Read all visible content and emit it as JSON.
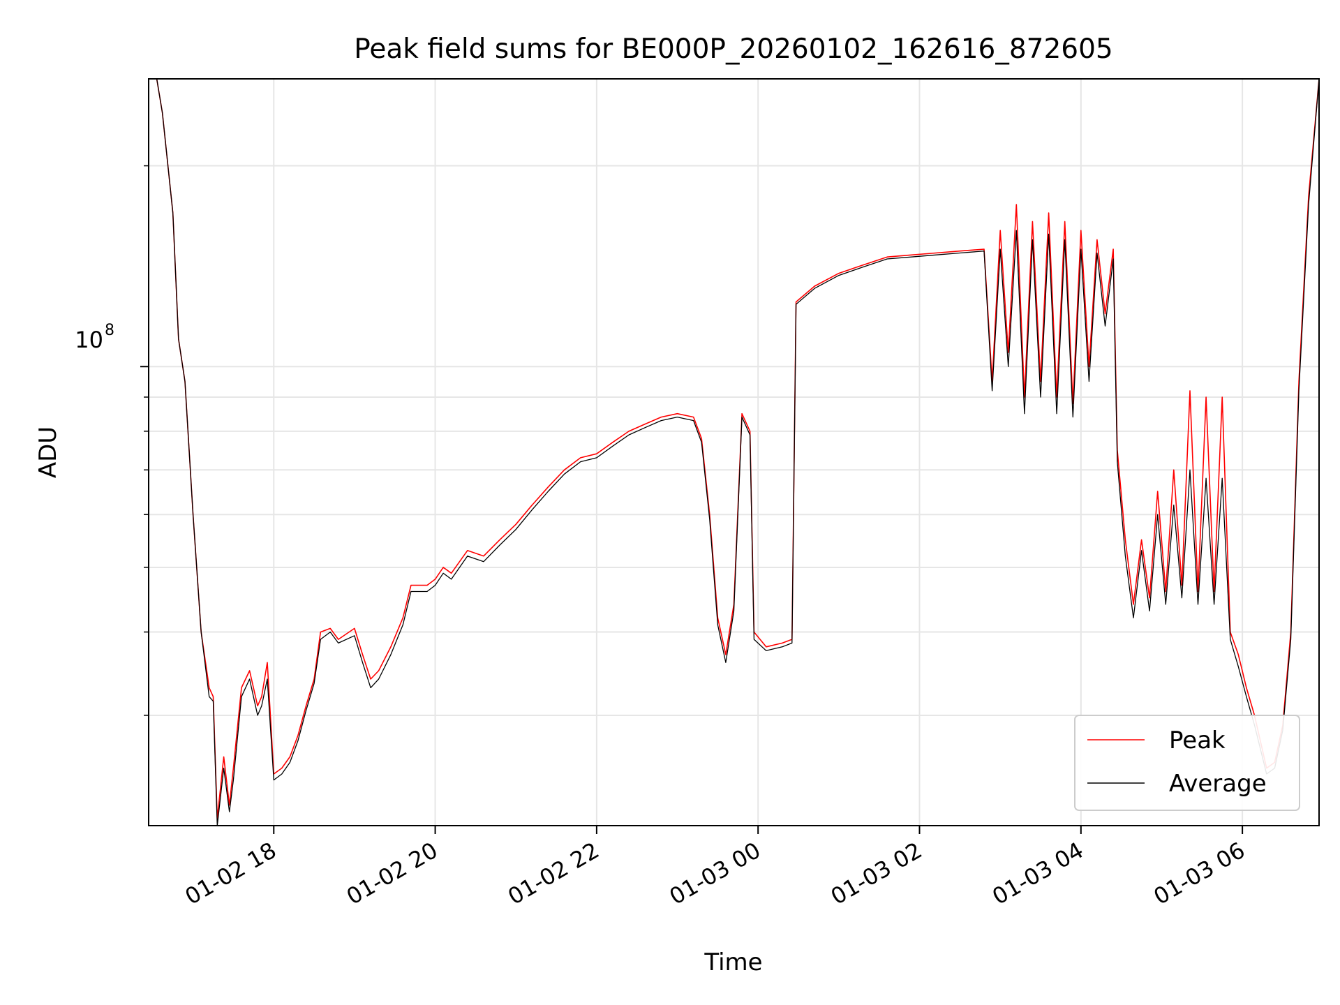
{
  "chart_data": {
    "type": "line",
    "title": "Peak field sums for BE000P_20260102_162616_872605",
    "xlabel": "Time",
    "ylabel": "ADU",
    "yscale": "log",
    "grid": true,
    "legend_location": "lower-right",
    "xlim_hours": [
      16.45,
      30.95
    ],
    "ylim": [
      20500000,
      270000000
    ],
    "x_tick_labels": [
      "01-02 18",
      "01-02 20",
      "01-02 22",
      "01-03 00",
      "01-03 02",
      "01-03 04",
      "01-03 06"
    ],
    "x_ticks_hours": [
      18,
      20,
      22,
      24,
      26,
      28,
      30
    ],
    "y_tick_label": {
      "base": "10",
      "exponent": "8",
      "value": 100000000
    },
    "series": [
      {
        "name": "Peak",
        "color": "#ff0000",
        "points": [
          [
            16.55,
            270000000
          ],
          [
            16.62,
            240000000
          ],
          [
            16.75,
            170000000
          ],
          [
            16.82,
            110000000
          ],
          [
            16.9,
            95000000
          ],
          [
            17.0,
            60000000
          ],
          [
            17.1,
            40000000
          ],
          [
            17.2,
            33000000
          ],
          [
            17.25,
            32000000
          ],
          [
            17.3,
            21000000
          ],
          [
            17.38,
            26000000
          ],
          [
            17.45,
            22000000
          ],
          [
            17.5,
            25000000
          ],
          [
            17.6,
            33000000
          ],
          [
            17.7,
            35000000
          ],
          [
            17.8,
            31000000
          ],
          [
            17.85,
            32000000
          ],
          [
            17.92,
            36000000
          ],
          [
            18.0,
            24500000
          ],
          [
            18.1,
            25000000
          ],
          [
            18.2,
            26000000
          ],
          [
            18.3,
            28000000
          ],
          [
            18.4,
            31000000
          ],
          [
            18.5,
            34000000
          ],
          [
            18.58,
            40000000
          ],
          [
            18.7,
            40500000
          ],
          [
            18.8,
            39000000
          ],
          [
            19.0,
            40500000
          ],
          [
            19.1,
            37000000
          ],
          [
            19.2,
            34000000
          ],
          [
            19.3,
            35000000
          ],
          [
            19.45,
            38000000
          ],
          [
            19.6,
            42000000
          ],
          [
            19.7,
            47000000
          ],
          [
            19.9,
            47000000
          ],
          [
            20.0,
            48000000
          ],
          [
            20.1,
            50000000
          ],
          [
            20.2,
            49000000
          ],
          [
            20.4,
            53000000
          ],
          [
            20.6,
            52000000
          ],
          [
            20.8,
            55000000
          ],
          [
            21.0,
            58000000
          ],
          [
            21.2,
            62000000
          ],
          [
            21.4,
            66000000
          ],
          [
            21.6,
            70000000
          ],
          [
            21.8,
            73000000
          ],
          [
            22.0,
            74000000
          ],
          [
            22.2,
            77000000
          ],
          [
            22.4,
            80000000
          ],
          [
            22.6,
            82000000
          ],
          [
            22.8,
            84000000
          ],
          [
            23.0,
            85000000
          ],
          [
            23.2,
            84000000
          ],
          [
            23.3,
            78000000
          ],
          [
            23.4,
            60000000
          ],
          [
            23.5,
            42000000
          ],
          [
            23.6,
            37000000
          ],
          [
            23.7,
            44000000
          ],
          [
            23.8,
            85000000
          ],
          [
            23.9,
            80000000
          ],
          [
            23.95,
            40000000
          ],
          [
            24.1,
            38000000
          ],
          [
            24.3,
            38500000
          ],
          [
            24.42,
            39000000
          ],
          [
            24.47,
            125000000
          ],
          [
            24.7,
            132000000
          ],
          [
            25.0,
            138000000
          ],
          [
            25.3,
            142000000
          ],
          [
            25.6,
            146000000
          ],
          [
            25.9,
            147000000
          ],
          [
            26.2,
            148000000
          ],
          [
            26.5,
            149000000
          ],
          [
            26.8,
            150000000
          ],
          [
            26.9,
            95000000
          ],
          [
            27.0,
            160000000
          ],
          [
            27.1,
            105000000
          ],
          [
            27.2,
            175000000
          ],
          [
            27.3,
            90000000
          ],
          [
            27.4,
            165000000
          ],
          [
            27.5,
            95000000
          ],
          [
            27.6,
            170000000
          ],
          [
            27.7,
            90000000
          ],
          [
            27.8,
            165000000
          ],
          [
            27.9,
            88000000
          ],
          [
            28.0,
            160000000
          ],
          [
            28.1,
            100000000
          ],
          [
            28.2,
            155000000
          ],
          [
            28.3,
            120000000
          ],
          [
            28.4,
            150000000
          ],
          [
            28.45,
            75000000
          ],
          [
            28.55,
            55000000
          ],
          [
            28.65,
            44000000
          ],
          [
            28.75,
            55000000
          ],
          [
            28.85,
            45000000
          ],
          [
            28.95,
            65000000
          ],
          [
            29.05,
            46000000
          ],
          [
            29.15,
            70000000
          ],
          [
            29.25,
            47000000
          ],
          [
            29.35,
            92000000
          ],
          [
            29.45,
            46000000
          ],
          [
            29.55,
            90000000
          ],
          [
            29.65,
            46000000
          ],
          [
            29.75,
            90000000
          ],
          [
            29.85,
            40000000
          ],
          [
            29.95,
            37000000
          ],
          [
            30.05,
            33000000
          ],
          [
            30.15,
            30000000
          ],
          [
            30.3,
            25000000
          ],
          [
            30.4,
            25500000
          ],
          [
            30.5,
            29000000
          ],
          [
            30.6,
            40000000
          ],
          [
            30.7,
            95000000
          ],
          [
            30.82,
            180000000
          ],
          [
            30.95,
            270000000
          ]
        ]
      },
      {
        "name": "Average",
        "color": "#000000",
        "points": [
          [
            16.55,
            270000000
          ],
          [
            16.62,
            240000000
          ],
          [
            16.75,
            170000000
          ],
          [
            16.82,
            110000000
          ],
          [
            16.9,
            95000000
          ],
          [
            17.0,
            60000000
          ],
          [
            17.1,
            40000000
          ],
          [
            17.2,
            32000000
          ],
          [
            17.25,
            31500000
          ],
          [
            17.3,
            20500000
          ],
          [
            17.38,
            25000000
          ],
          [
            17.45,
            21500000
          ],
          [
            17.5,
            24000000
          ],
          [
            17.6,
            32000000
          ],
          [
            17.7,
            34000000
          ],
          [
            17.8,
            30000000
          ],
          [
            17.85,
            31000000
          ],
          [
            17.92,
            34000000
          ],
          [
            18.0,
            24000000
          ],
          [
            18.1,
            24500000
          ],
          [
            18.2,
            25500000
          ],
          [
            18.3,
            27500000
          ],
          [
            18.4,
            30500000
          ],
          [
            18.5,
            33500000
          ],
          [
            18.58,
            39000000
          ],
          [
            18.7,
            40000000
          ],
          [
            18.8,
            38500000
          ],
          [
            19.0,
            39500000
          ],
          [
            19.1,
            36000000
          ],
          [
            19.2,
            33000000
          ],
          [
            19.3,
            34000000
          ],
          [
            19.45,
            37000000
          ],
          [
            19.6,
            41000000
          ],
          [
            19.7,
            46000000
          ],
          [
            19.9,
            46000000
          ],
          [
            20.0,
            47000000
          ],
          [
            20.1,
            49000000
          ],
          [
            20.2,
            48000000
          ],
          [
            20.4,
            52000000
          ],
          [
            20.6,
            51000000
          ],
          [
            20.8,
            54000000
          ],
          [
            21.0,
            57000000
          ],
          [
            21.2,
            61000000
          ],
          [
            21.4,
            65000000
          ],
          [
            21.6,
            69000000
          ],
          [
            21.8,
            72000000
          ],
          [
            22.0,
            73000000
          ],
          [
            22.2,
            76000000
          ],
          [
            22.4,
            79000000
          ],
          [
            22.6,
            81000000
          ],
          [
            22.8,
            83000000
          ],
          [
            23.0,
            84000000
          ],
          [
            23.2,
            83000000
          ],
          [
            23.3,
            77000000
          ],
          [
            23.4,
            59000000
          ],
          [
            23.5,
            41000000
          ],
          [
            23.6,
            36000000
          ],
          [
            23.7,
            43000000
          ],
          [
            23.8,
            84000000
          ],
          [
            23.9,
            79000000
          ],
          [
            23.95,
            39000000
          ],
          [
            24.1,
            37500000
          ],
          [
            24.3,
            38000000
          ],
          [
            24.42,
            38500000
          ],
          [
            24.47,
            124000000
          ],
          [
            24.7,
            131000000
          ],
          [
            25.0,
            137000000
          ],
          [
            25.3,
            141000000
          ],
          [
            25.6,
            145000000
          ],
          [
            25.9,
            146000000
          ],
          [
            26.2,
            147000000
          ],
          [
            26.5,
            148000000
          ],
          [
            26.8,
            149000000
          ],
          [
            26.9,
            92000000
          ],
          [
            27.0,
            150000000
          ],
          [
            27.1,
            100000000
          ],
          [
            27.2,
            160000000
          ],
          [
            27.3,
            85000000
          ],
          [
            27.4,
            155000000
          ],
          [
            27.5,
            90000000
          ],
          [
            27.6,
            158000000
          ],
          [
            27.7,
            85000000
          ],
          [
            27.8,
            155000000
          ],
          [
            27.9,
            84000000
          ],
          [
            28.0,
            150000000
          ],
          [
            28.1,
            95000000
          ],
          [
            28.2,
            148000000
          ],
          [
            28.3,
            115000000
          ],
          [
            28.4,
            145000000
          ],
          [
            28.45,
            72000000
          ],
          [
            28.55,
            52000000
          ],
          [
            28.65,
            42000000
          ],
          [
            28.75,
            53000000
          ],
          [
            28.85,
            43000000
          ],
          [
            28.95,
            60000000
          ],
          [
            29.05,
            44000000
          ],
          [
            29.15,
            62000000
          ],
          [
            29.25,
            45000000
          ],
          [
            29.35,
            70000000
          ],
          [
            29.45,
            44000000
          ],
          [
            29.55,
            68000000
          ],
          [
            29.65,
            44000000
          ],
          [
            29.75,
            68000000
          ],
          [
            29.85,
            39000000
          ],
          [
            29.95,
            35500000
          ],
          [
            30.05,
            32000000
          ],
          [
            30.15,
            29000000
          ],
          [
            30.3,
            24500000
          ],
          [
            30.4,
            25000000
          ],
          [
            30.5,
            28500000
          ],
          [
            30.6,
            39000000
          ],
          [
            30.7,
            92000000
          ],
          [
            30.82,
            175000000
          ],
          [
            30.95,
            270000000
          ]
        ]
      }
    ]
  }
}
